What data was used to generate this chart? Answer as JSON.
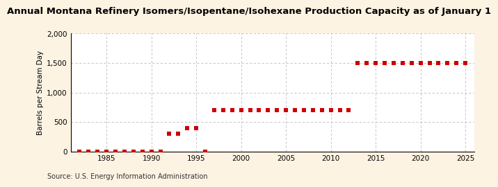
{
  "title": "Annual Montana Refinery Isomers/Isopentane/Isohexane Production Capacity as of January 1",
  "ylabel": "Barrels per Stream Day",
  "source": "Source: U.S. Energy Information Administration",
  "background_color": "#fdf3e3",
  "plot_bg_color": "#ffffff",
  "marker_color": "#cc0000",
  "years": [
    1982,
    1983,
    1984,
    1985,
    1986,
    1987,
    1988,
    1989,
    1990,
    1991,
    1992,
    1993,
    1994,
    1995,
    1996,
    1997,
    1998,
    1999,
    2000,
    2001,
    2002,
    2003,
    2004,
    2005,
    2006,
    2007,
    2008,
    2009,
    2010,
    2011,
    2012,
    2013,
    2014,
    2015,
    2016,
    2017,
    2018,
    2019,
    2020,
    2021,
    2022,
    2023,
    2024,
    2025
  ],
  "values": [
    0,
    0,
    0,
    0,
    0,
    0,
    0,
    0,
    0,
    0,
    300,
    300,
    400,
    400,
    0,
    700,
    700,
    700,
    700,
    700,
    700,
    700,
    700,
    700,
    700,
    700,
    700,
    700,
    700,
    700,
    700,
    1500,
    1500,
    1500,
    1500,
    1500,
    1500,
    1500,
    1500,
    1500,
    1500,
    1500,
    1500,
    1500
  ],
  "ylim": [
    0,
    2000
  ],
  "yticks": [
    0,
    500,
    1000,
    1500,
    2000
  ],
  "ytick_labels": [
    "0",
    "500",
    "1,000",
    "1,500",
    "2,000"
  ],
  "xlim": [
    1981,
    2026
  ],
  "xticks": [
    1985,
    1990,
    1995,
    2000,
    2005,
    2010,
    2015,
    2020,
    2025
  ],
  "grid_color": "#bbbbbb",
  "title_fontsize": 9.5,
  "label_fontsize": 7.5,
  "tick_fontsize": 7.5,
  "source_fontsize": 7,
  "marker_size": 4.5
}
